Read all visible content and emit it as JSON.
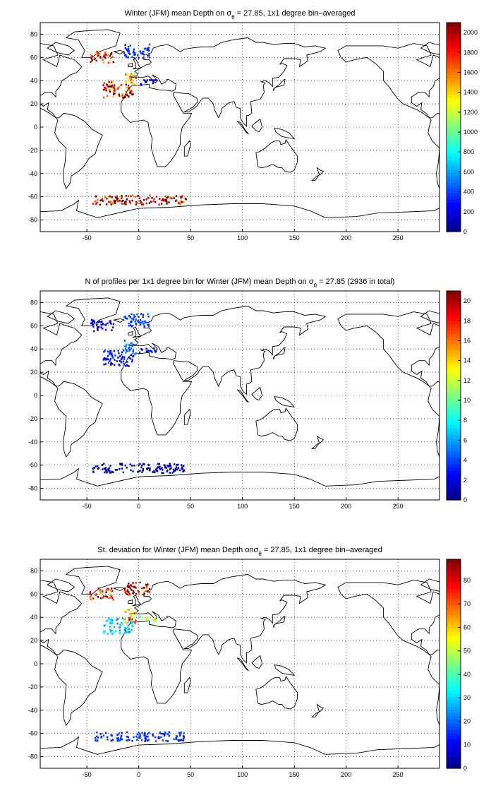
{
  "chart_data": [
    {
      "type": "heatmap",
      "title": "Winter (JFM) mean Depth on σθ = 27.85, 1x1 degree bin–averaged",
      "title_parts": [
        "Winter (JFM) mean Depth on ",
        "σ",
        "θ",
        " = 27.85, 1x1 degree bin–averaged"
      ],
      "xlim": [
        -95,
        290
      ],
      "ylim": [
        -90,
        90
      ],
      "x_ticks": [
        -50,
        0,
        50,
        100,
        150,
        200,
        250
      ],
      "y_ticks": [
        80,
        60,
        40,
        20,
        0,
        -20,
        -40,
        -60,
        -80
      ],
      "grid": true,
      "colorbar": {
        "min": 0,
        "max": 2100,
        "ticks": [
          0,
          200,
          400,
          600,
          800,
          1000,
          1200,
          1400,
          1600,
          1800,
          2000
        ],
        "colormap": "jet"
      },
      "regions": [
        {
          "lon": [
            -48,
            -25
          ],
          "lat": [
            56,
            66
          ],
          "value": 1900
        },
        {
          "lon": [
            -15,
            10
          ],
          "lat": [
            60,
            72
          ],
          "value": 350
        },
        {
          "lon": [
            -35,
            -5
          ],
          "lat": [
            26,
            40
          ],
          "value": 1850
        },
        {
          "lon": [
            -15,
            -3
          ],
          "lat": [
            36,
            48
          ],
          "value": 1450
        },
        {
          "lon": [
            0,
            18
          ],
          "lat": [
            37,
            42
          ],
          "value": 150
        },
        {
          "lon": [
            -45,
            45
          ],
          "lat": [
            -66,
            -58
          ],
          "value": 2000
        }
      ]
    },
    {
      "type": "heatmap",
      "title": "N of profiles per 1x1 degree bin for Winter (JFM) mean Depth on σθ = 27.85 (2936 in total)",
      "title_parts": [
        "N of profiles per 1x1 degree bin for Winter (JFM) mean Depth on ",
        "σ",
        "θ",
        " = 27.85 (2936 in total)"
      ],
      "xlim": [
        -95,
        290
      ],
      "ylim": [
        -90,
        90
      ],
      "x_ticks": [
        -50,
        0,
        50,
        100,
        150,
        200,
        250
      ],
      "y_ticks": [
        80,
        60,
        40,
        20,
        0,
        -20,
        -40,
        -60,
        -80
      ],
      "grid": true,
      "colorbar": {
        "min": 0,
        "max": 21,
        "ticks": [
          0,
          2,
          4,
          6,
          8,
          10,
          12,
          14,
          16,
          18,
          20
        ],
        "colormap": "jet"
      },
      "regions": [
        {
          "lon": [
            -48,
            -25
          ],
          "lat": [
            56,
            66
          ],
          "value": 2
        },
        {
          "lon": [
            -15,
            10
          ],
          "lat": [
            60,
            72
          ],
          "value": 4
        },
        {
          "lon": [
            -35,
            -5
          ],
          "lat": [
            26,
            40
          ],
          "value": 3
        },
        {
          "lon": [
            -15,
            -3
          ],
          "lat": [
            36,
            48
          ],
          "value": 5
        },
        {
          "lon": [
            0,
            18
          ],
          "lat": [
            37,
            42
          ],
          "value": 3
        },
        {
          "lon": [
            -45,
            45
          ],
          "lat": [
            -66,
            -58
          ],
          "value": 1
        }
      ]
    },
    {
      "type": "heatmap",
      "title": "St. deviation for Winter (JFM) mean Depth onσθ = 27.85, 1x1 degree bin–averaged",
      "title_parts": [
        "St. deviation for Winter (JFM) mean Depth on",
        "σ",
        "θ",
        " = 27.85, 1x1 degree bin–averaged"
      ],
      "xlim": [
        -95,
        290
      ],
      "ylim": [
        -90,
        90
      ],
      "x_ticks": [
        -50,
        0,
        50,
        100,
        150,
        200,
        250
      ],
      "y_ticks": [
        80,
        60,
        40,
        20,
        0,
        -20,
        -40,
        -60,
        -80
      ],
      "grid": true,
      "colorbar": {
        "min": 0,
        "max": 89,
        "ticks": [
          0,
          10,
          20,
          30,
          40,
          50,
          60,
          70,
          80
        ],
        "colormap": "jet"
      },
      "regions": [
        {
          "lon": [
            -48,
            -25
          ],
          "lat": [
            56,
            66
          ],
          "value": 75
        },
        {
          "lon": [
            -15,
            10
          ],
          "lat": [
            60,
            72
          ],
          "value": 82
        },
        {
          "lon": [
            -35,
            -5
          ],
          "lat": [
            26,
            40
          ],
          "value": 30
        },
        {
          "lon": [
            -15,
            -3
          ],
          "lat": [
            36,
            48
          ],
          "value": 65
        },
        {
          "lon": [
            0,
            18
          ],
          "lat": [
            37,
            42
          ],
          "value": 45
        },
        {
          "lon": [
            -45,
            45
          ],
          "lat": [
            -66,
            -58
          ],
          "value": 15
        }
      ]
    }
  ]
}
